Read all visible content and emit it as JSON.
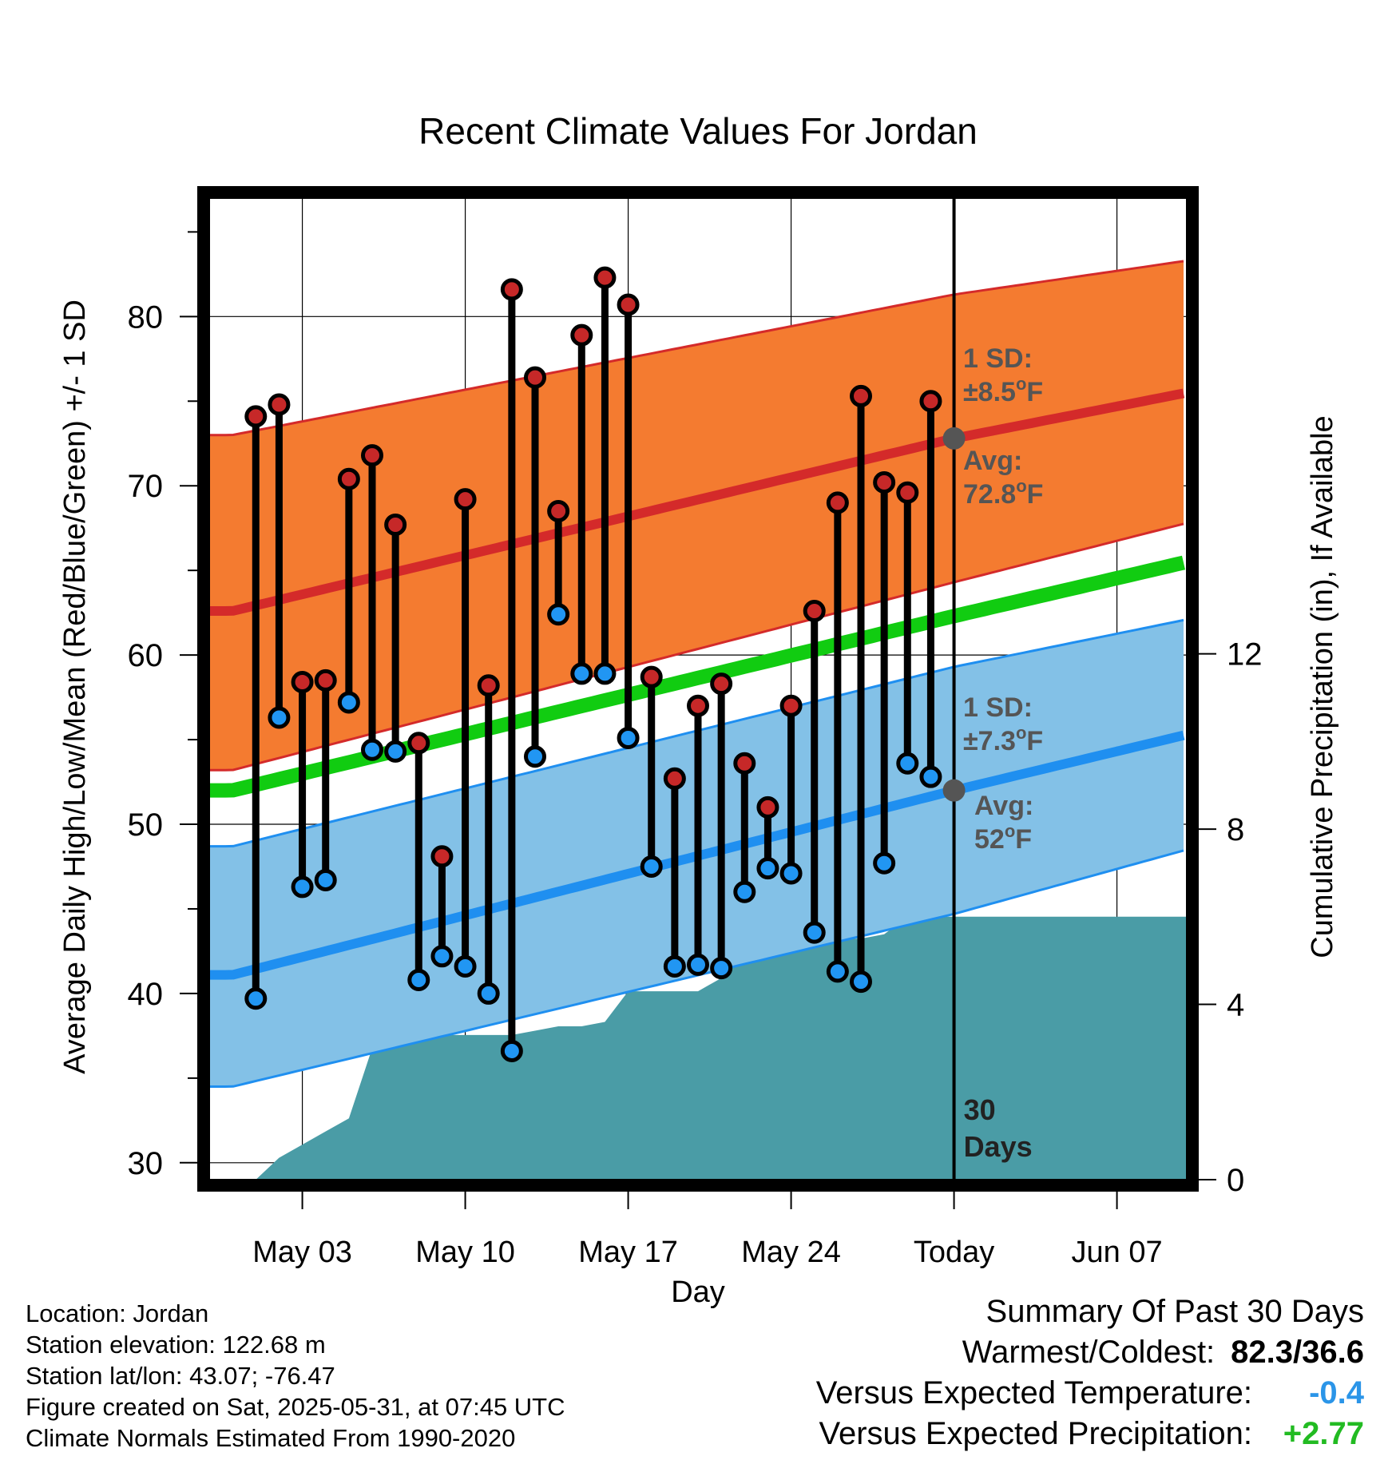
{
  "chart_data": {
    "type": "line",
    "title": "Recent Climate Values For Jordan",
    "xlabel": "Day",
    "ylabel_left": "Average Daily High/Low/Mean (Red/Blue/Green) +/- 1 SD",
    "ylabel_right": "Cumulative Precipitation (in), If Available",
    "xlim": [
      "2025-04-29",
      "2025-06-10"
    ],
    "ylim_left": [
      29,
      87
    ],
    "ylim_right": [
      0,
      22.4
    ],
    "x_ticks": [
      {
        "date": "2025-05-03",
        "label": "May 03"
      },
      {
        "date": "2025-05-10",
        "label": "May 10"
      },
      {
        "date": "2025-05-17",
        "label": "May 17"
      },
      {
        "date": "2025-05-24",
        "label": "May 24"
      },
      {
        "date": "2025-05-31",
        "label": "Today"
      },
      {
        "date": "2025-06-07",
        "label": "Jun 07"
      }
    ],
    "y_ticks_left": [
      30,
      40,
      50,
      60,
      70,
      80
    ],
    "y_ticks_right": [
      0,
      4,
      8,
      12
    ],
    "grid": true,
    "today": "2025-05-31",
    "today_label": "30\nDays",
    "normals": {
      "dates": [
        "2025-04-30",
        "2025-05-31",
        "2025-06-10"
      ],
      "high_avg": [
        62.6,
        72.8,
        75.5
      ],
      "high_upper": [
        73.0,
        81.3,
        83.3
      ],
      "high_lower": [
        53.2,
        64.3,
        67.8
      ],
      "low_avg": [
        41.1,
        52.0,
        55.3
      ],
      "low_upper": [
        48.7,
        59.3,
        62.1
      ],
      "low_lower": [
        34.5,
        44.7,
        48.5
      ],
      "mean_avg": [
        52.0,
        62.3,
        65.5
      ]
    },
    "observations": [
      {
        "date": "2025-05-01",
        "high": 74.1,
        "low": 39.7
      },
      {
        "date": "2025-05-02",
        "high": 74.8,
        "low": 56.3
      },
      {
        "date": "2025-05-03",
        "high": 58.4,
        "low": 46.3
      },
      {
        "date": "2025-05-04",
        "high": 58.5,
        "low": 46.7
      },
      {
        "date": "2025-05-05",
        "high": 70.4,
        "low": 57.2
      },
      {
        "date": "2025-05-06",
        "high": 71.8,
        "low": 54.4
      },
      {
        "date": "2025-05-07",
        "high": 67.7,
        "low": 54.3
      },
      {
        "date": "2025-05-08",
        "high": 54.8,
        "low": 40.8
      },
      {
        "date": "2025-05-09",
        "high": 48.1,
        "low": 42.2
      },
      {
        "date": "2025-05-10",
        "high": 69.2,
        "low": 41.6
      },
      {
        "date": "2025-05-11",
        "high": 58.2,
        "low": 40.0
      },
      {
        "date": "2025-05-12",
        "high": 81.6,
        "low": 36.6
      },
      {
        "date": "2025-05-13",
        "high": 76.4,
        "low": 54.0
      },
      {
        "date": "2025-05-14",
        "high": 68.5,
        "low": 62.4
      },
      {
        "date": "2025-05-15",
        "high": 78.9,
        "low": 58.9
      },
      {
        "date": "2025-05-16",
        "high": 82.3,
        "low": 58.9
      },
      {
        "date": "2025-05-17",
        "high": 80.7,
        "low": 55.1
      },
      {
        "date": "2025-05-18",
        "high": 58.7,
        "low": 47.5
      },
      {
        "date": "2025-05-19",
        "high": 52.7,
        "low": 41.6
      },
      {
        "date": "2025-05-20",
        "high": 57.0,
        "low": 41.7
      },
      {
        "date": "2025-05-21",
        "high": 58.3,
        "low": 41.5
      },
      {
        "date": "2025-05-22",
        "high": 53.6,
        "low": 46.0
      },
      {
        "date": "2025-05-23",
        "high": 51.0,
        "low": 47.4
      },
      {
        "date": "2025-05-24",
        "high": 57.0,
        "low": 47.1
      },
      {
        "date": "2025-05-25",
        "high": 62.6,
        "low": 43.6
      },
      {
        "date": "2025-05-26",
        "high": 69.0,
        "low": 41.3
      },
      {
        "date": "2025-05-27",
        "high": 75.3,
        "low": 40.7
      },
      {
        "date": "2025-05-28",
        "high": 70.2,
        "low": 47.7
      },
      {
        "date": "2025-05-29",
        "high": 69.6,
        "low": 53.6
      },
      {
        "date": "2025-05-30",
        "high": 75.0,
        "low": 52.8
      }
    ],
    "precipitation": [
      {
        "date": "2025-05-01",
        "value": 0.0
      },
      {
        "date": "2025-05-02",
        "value": 0.5
      },
      {
        "date": "2025-05-03",
        "value": 0.8
      },
      {
        "date": "2025-05-04",
        "value": 1.1
      },
      {
        "date": "2025-05-05",
        "value": 1.4
      },
      {
        "date": "2025-05-06",
        "value": 3.0
      },
      {
        "date": "2025-05-07",
        "value": 3.2
      },
      {
        "date": "2025-05-08",
        "value": 3.2
      },
      {
        "date": "2025-05-09",
        "value": 3.3
      },
      {
        "date": "2025-05-10",
        "value": 3.3
      },
      {
        "date": "2025-05-11",
        "value": 3.3
      },
      {
        "date": "2025-05-12",
        "value": 3.3
      },
      {
        "date": "2025-05-13",
        "value": 3.4
      },
      {
        "date": "2025-05-14",
        "value": 3.5
      },
      {
        "date": "2025-05-15",
        "value": 3.5
      },
      {
        "date": "2025-05-16",
        "value": 3.6
      },
      {
        "date": "2025-05-17",
        "value": 4.3
      },
      {
        "date": "2025-05-18",
        "value": 4.3
      },
      {
        "date": "2025-05-19",
        "value": 4.3
      },
      {
        "date": "2025-05-20",
        "value": 4.3
      },
      {
        "date": "2025-05-21",
        "value": 4.6
      },
      {
        "date": "2025-05-22",
        "value": 5.2
      },
      {
        "date": "2025-05-23",
        "value": 5.5
      },
      {
        "date": "2025-05-24",
        "value": 5.5
      },
      {
        "date": "2025-05-25",
        "value": 5.5
      },
      {
        "date": "2025-05-26",
        "value": 5.5
      },
      {
        "date": "2025-05-27",
        "value": 5.5
      },
      {
        "date": "2025-05-28",
        "value": 5.6
      },
      {
        "date": "2025-05-29",
        "value": 6.0
      },
      {
        "date": "2025-05-30",
        "value": 6.0
      },
      {
        "date": "2025-05-31",
        "value": 6.0
      },
      {
        "date": "2025-06-10",
        "value": 6.0
      }
    ],
    "annotations": {
      "high_sd": {
        "line1": "1 SD:",
        "line2_prefix": "±8.5",
        "line2_suffix": "F"
      },
      "high_avg": {
        "line1": "Avg:",
        "line2_prefix": "72.8",
        "line2_suffix": "F"
      },
      "low_sd": {
        "line1": "1 SD:",
        "line2_prefix": "±7.3",
        "line2_suffix": "F"
      },
      "low_avg": {
        "line1": "Avg:",
        "line2_prefix": "52",
        "line2_suffix": "F"
      },
      "degree_mark": "o"
    },
    "colors": {
      "high_band": "#f47b30",
      "high_line": "#d42a2a",
      "low_band": "#83c1e7",
      "low_line": "#1f8ff0",
      "mean_line": "#11cc11",
      "precip": "#4a9ca6",
      "high_dot": "#c62828",
      "low_dot": "#2196f3",
      "annotation": "#555555"
    }
  },
  "footer": {
    "location": "Location: Jordan",
    "elevation": "Station elevation: 122.68 m",
    "latlon": "Station lat/lon: 43.07; -76.47",
    "created": "Figure created on Sat, 2025-05-31, at 07:45 UTC",
    "normals": "Climate Normals Estimated From 1990-2020"
  },
  "summary": {
    "title": "Summary Of Past 30 Days",
    "warm_cold_label": "Warmest/Coldest:",
    "warm_cold_value": "82.3/36.6",
    "temp_label": "Versus Expected Temperature:",
    "temp_value": "-0.4",
    "precip_label": "Versus Expected Precipitation:",
    "precip_value": "+2.77"
  }
}
